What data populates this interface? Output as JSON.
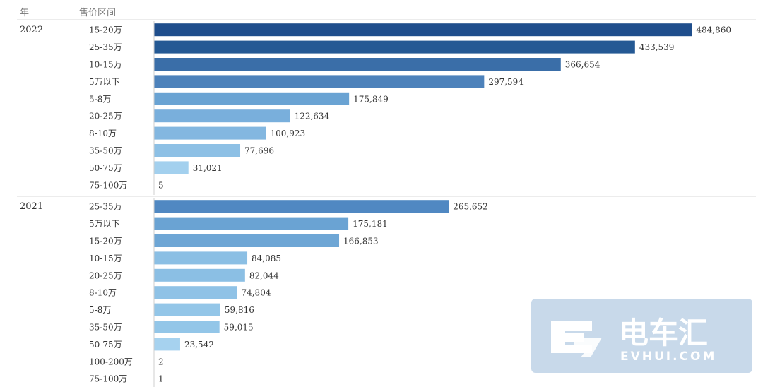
{
  "chart_data": {
    "type": "bar",
    "orientation": "horizontal",
    "header": {
      "year": "年",
      "category": "售价区间"
    },
    "xlim": [
      0,
      540000
    ],
    "groups": [
      {
        "year": "2022",
        "bars": [
          {
            "label": "15-20万",
            "value": 484860,
            "value_label": "484,860",
            "color": "#1f4e8c"
          },
          {
            "label": "25-35万",
            "value": 433539,
            "value_label": "433,539",
            "color": "#245994"
          },
          {
            "label": "10-15万",
            "value": 366654,
            "value_label": "366,654",
            "color": "#3a6ea8"
          },
          {
            "label": "5万以下",
            "value": 297594,
            "value_label": "297,594",
            "color": "#4d82bb"
          },
          {
            "label": "5-8万",
            "value": 175849,
            "value_label": "175,849",
            "color": "#6aa3d3"
          },
          {
            "label": "20-25万",
            "value": 122634,
            "value_label": "122,634",
            "color": "#79afdc"
          },
          {
            "label": "8-10万",
            "value": 100923,
            "value_label": "100,923",
            "color": "#83b7e0"
          },
          {
            "label": "35-50万",
            "value": 77696,
            "value_label": "77,696",
            "color": "#8dc0e5"
          },
          {
            "label": "50-75万",
            "value": 31021,
            "value_label": "31,021",
            "color": "#a3d0ee"
          },
          {
            "label": "75-100万",
            "value": 5,
            "value_label": "5",
            "color": "#a3d0ee"
          }
        ]
      },
      {
        "year": "2021",
        "bars": [
          {
            "label": "25-35万",
            "value": 265652,
            "value_label": "265,652",
            "color": "#5088c2"
          },
          {
            "label": "5万以下",
            "value": 175181,
            "value_label": "175,181",
            "color": "#6aa3d3"
          },
          {
            "label": "15-20万",
            "value": 166853,
            "value_label": "166,853",
            "color": "#6ea6d5"
          },
          {
            "label": "10-15万",
            "value": 84085,
            "value_label": "84,085",
            "color": "#8bbfe4"
          },
          {
            "label": "20-25万",
            "value": 82044,
            "value_label": "82,044",
            "color": "#8bbfe4"
          },
          {
            "label": "8-10万",
            "value": 74804,
            "value_label": "74,804",
            "color": "#8fc2e6"
          },
          {
            "label": "5-8万",
            "value": 59816,
            "value_label": "59,816",
            "color": "#93c6e8"
          },
          {
            "label": "35-50万",
            "value": 59015,
            "value_label": "59,015",
            "color": "#93c6e8"
          },
          {
            "label": "50-75万",
            "value": 23542,
            "value_label": "23,542",
            "color": "#a6d2ef"
          },
          {
            "label": "100-200万",
            "value": 2,
            "value_label": "2",
            "color": "#a6d2ef"
          },
          {
            "label": "75-100万",
            "value": 1,
            "value_label": "1",
            "color": "#a6d2ef"
          }
        ]
      }
    ]
  },
  "watermark": {
    "brand": "电车汇",
    "site": "EVHUI.COM",
    "color": "#c8d9ea"
  }
}
